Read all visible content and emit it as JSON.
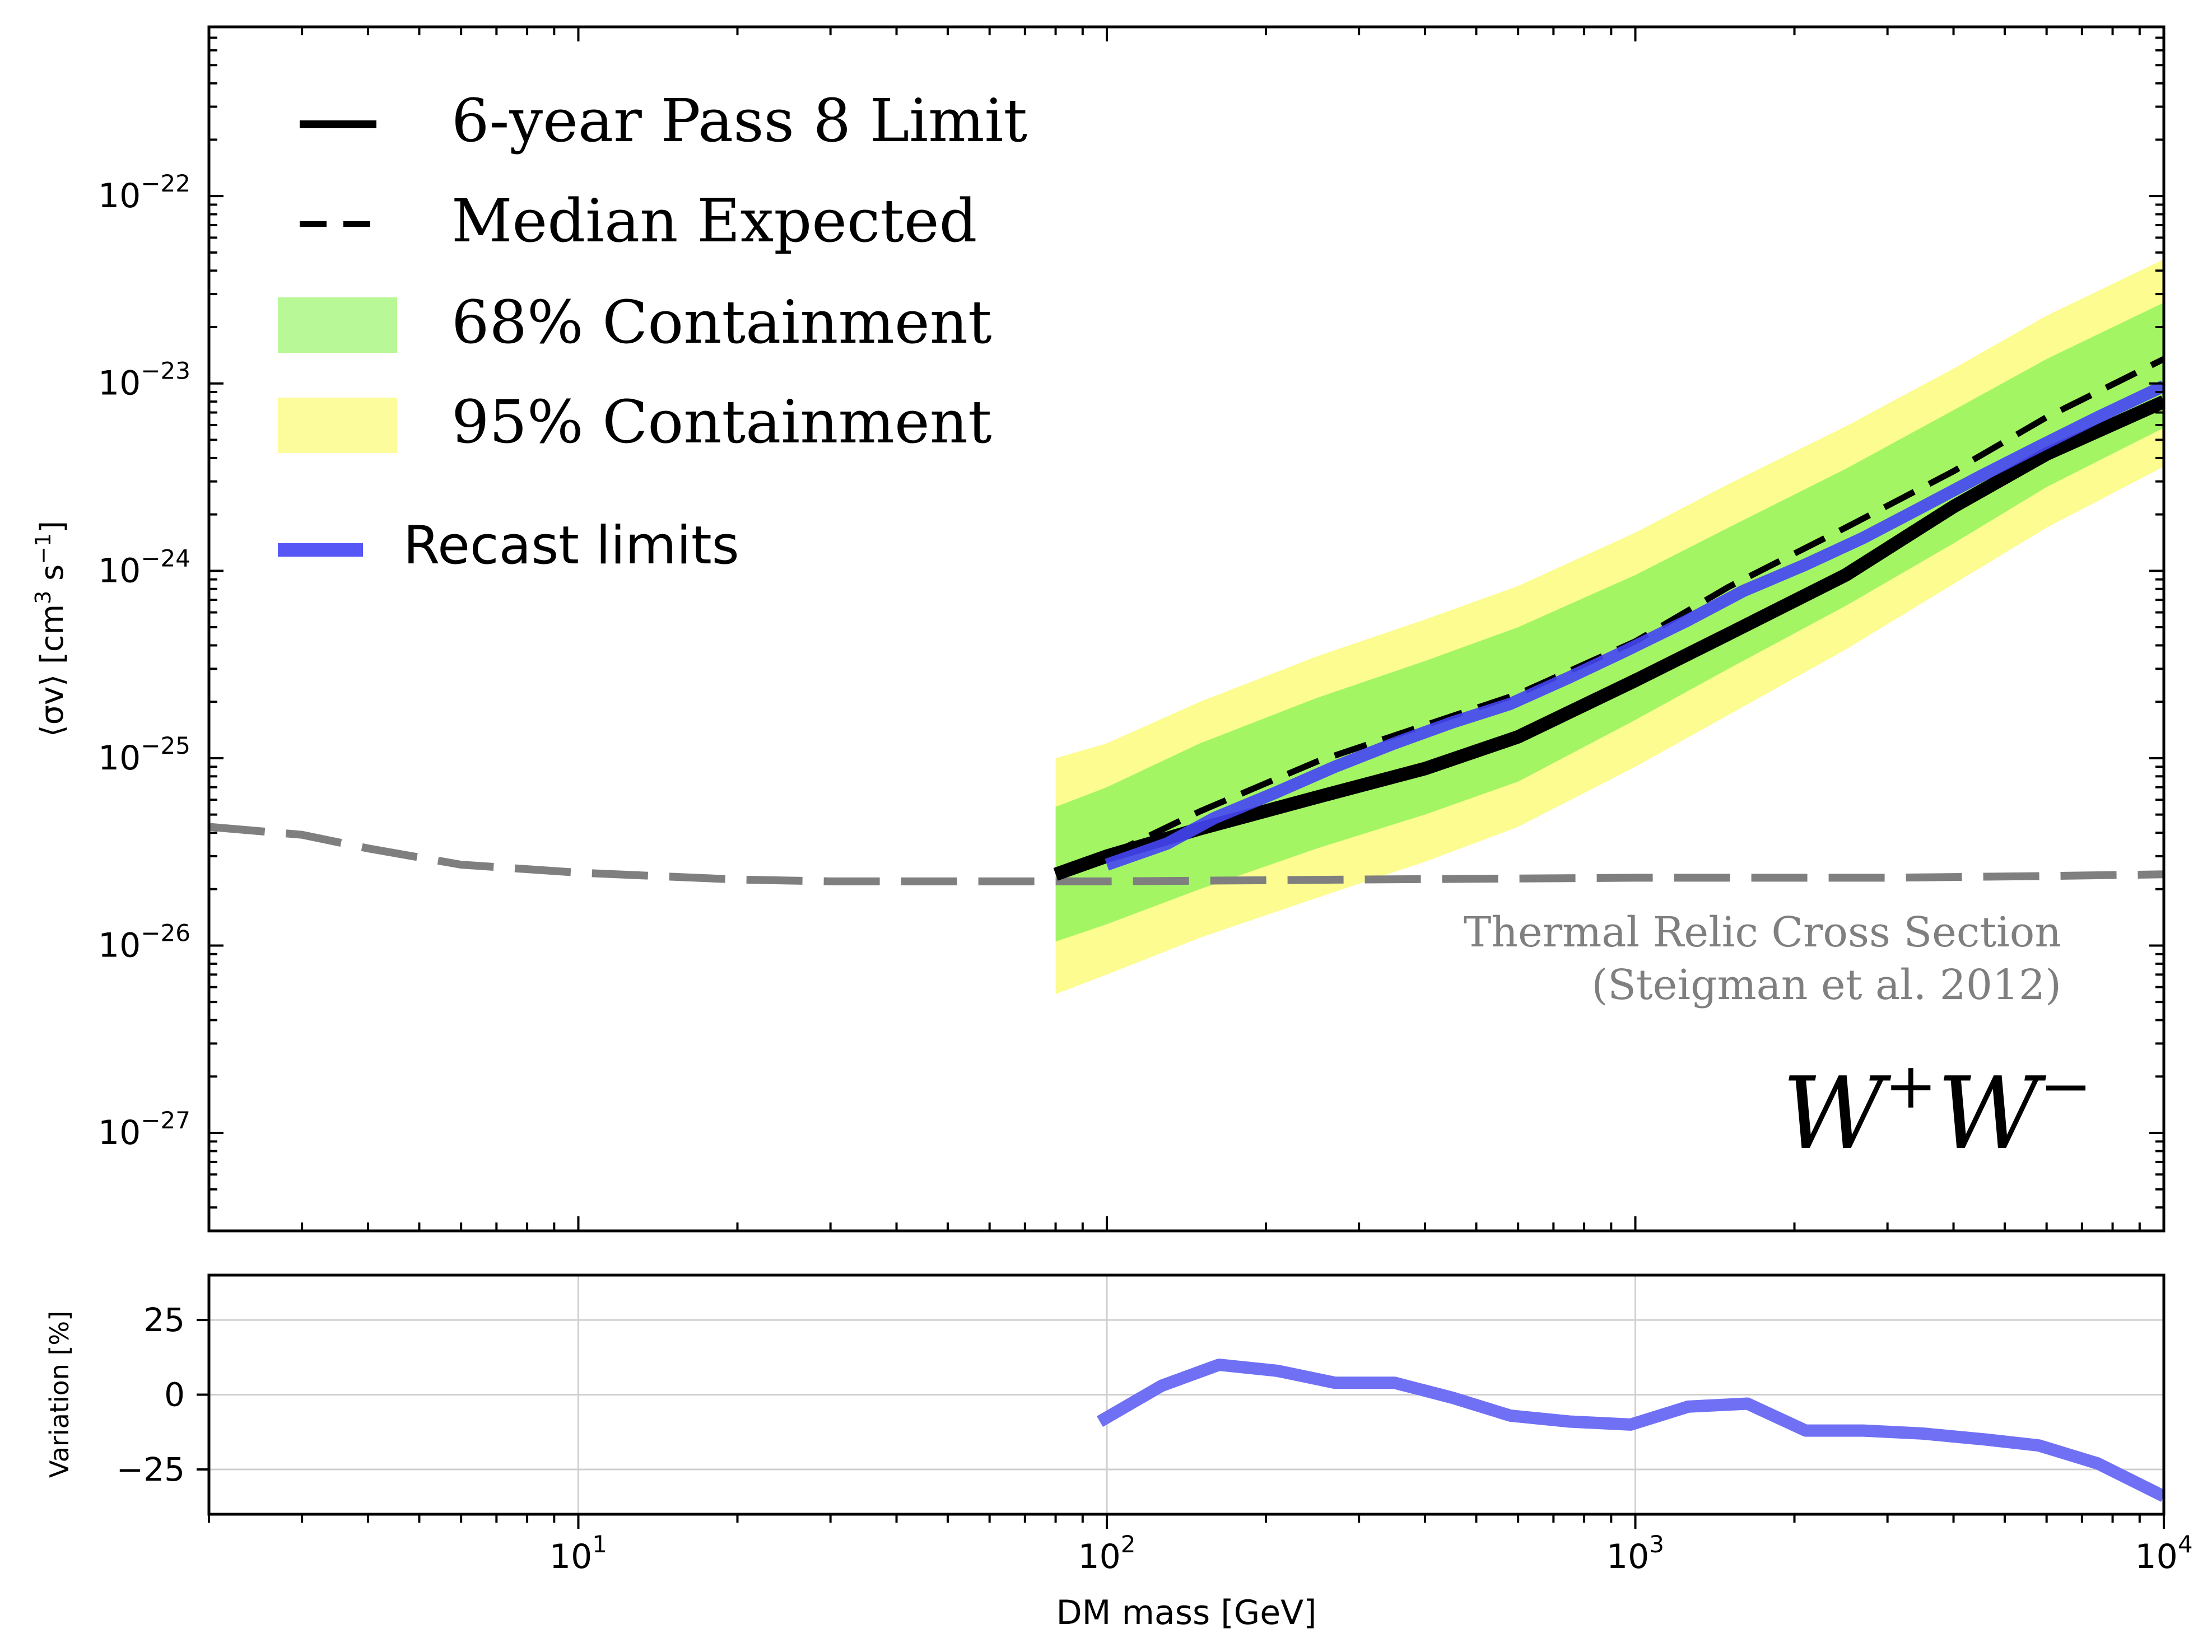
{
  "chart_data": [
    {
      "type": "line",
      "panel": "main",
      "xscale": "log",
      "yscale": "log",
      "xlim": [
        2,
        10000
      ],
      "ylim": [
        3e-28,
        8e-22
      ],
      "ylabel_main": "⟨σv⟩ [cm",
      "ylabel_sup": "3",
      "ylabel_mid": " s",
      "ylabel_sup2": "−1",
      "ylabel_end": "]",
      "yticks": [
        {
          "value": 1e-27,
          "base": "10",
          "exp": "−27"
        },
        {
          "value": 1e-26,
          "base": "10",
          "exp": "−26"
        },
        {
          "value": 1e-25,
          "base": "10",
          "exp": "−25"
        },
        {
          "value": 1e-24,
          "base": "10",
          "exp": "−24"
        },
        {
          "value": 1e-23,
          "base": "10",
          "exp": "−23"
        },
        {
          "value": 1e-22,
          "base": "10",
          "exp": "−22"
        }
      ],
      "legend_position": "upper-left",
      "legend": [
        {
          "key": "limit",
          "label": "6-year Pass 8 Limit"
        },
        {
          "key": "median",
          "label": "Median Expected"
        },
        {
          "key": "band68",
          "label": "68% Containment"
        },
        {
          "key": "band95",
          "label": "95% Containment"
        },
        {
          "key": "recast",
          "label": "Recast limits"
        }
      ],
      "annotations": {
        "thermal_line1": "Thermal Relic Cross Section",
        "thermal_line2": "(Steigman et al. 2012)",
        "channel_W1": "W",
        "channel_sup1": "+",
        "channel_W2": "W",
        "channel_sup2": "−"
      },
      "colors": {
        "limit": "#000000",
        "median": "#000000",
        "band68": "#a3f564",
        "band95": "#fcfc90",
        "recast": "#4545f5",
        "thermal": "#7f7f7f"
      },
      "series": [
        {
          "key": "limit",
          "x": [
            80,
            100,
            150,
            250,
            400,
            600,
            1000,
            1500,
            2500,
            4000,
            6000,
            10000
          ],
          "y": [
            2.4e-26,
            3e-26,
            4.2e-26,
            6.2e-26,
            8.8e-26,
            1.3e-25,
            2.6e-25,
            4.6e-25,
            9.5e-25,
            2.2e-24,
            4.2e-24,
            8e-24
          ]
        },
        {
          "key": "median",
          "x": [
            80,
            100,
            150,
            250,
            400,
            600,
            1000,
            1500,
            2500,
            4000,
            6000,
            10000
          ],
          "y": [
            2.5e-26,
            3e-26,
            5.2e-26,
            9.6e-26,
            1.5e-25,
            2.2e-25,
            4.2e-25,
            8.2e-25,
            1.7e-24,
            3.4e-24,
            6.6e-24,
            1.35e-23
          ]
        },
        {
          "key": "recast",
          "x": [
            100,
            130,
            160,
            210,
            270,
            350,
            450,
            580,
            750,
            950,
            1250,
            1600,
            2100,
            2700,
            3500,
            4500,
            5800,
            7500,
            10000
          ],
          "y": [
            2.7e-26,
            3.5e-26,
            4.8e-26,
            6.6e-26,
            9e-26,
            1.2e-25,
            1.55e-25,
            1.95e-25,
            2.7e-25,
            3.7e-25,
            5.4e-25,
            7.8e-25,
            1.08e-24,
            1.5e-24,
            2.2e-24,
            3.2e-24,
            4.6e-24,
            6.6e-24,
            9.7e-24
          ]
        },
        {
          "key": "band68",
          "x": [
            80,
            100,
            150,
            250,
            400,
            600,
            1000,
            1500,
            2500,
            4000,
            6000,
            10000
          ],
          "lower": [
            1.05e-26,
            1.3e-26,
            2e-26,
            3.3e-26,
            5e-26,
            7.5e-26,
            1.6e-25,
            3e-25,
            6.5e-25,
            1.4e-24,
            2.8e-24,
            5.8e-24
          ],
          "upper": [
            5.5e-26,
            7e-26,
            1.2e-25,
            2.1e-25,
            3.3e-25,
            5e-25,
            9.5e-25,
            1.7e-24,
            3.5e-24,
            7.2e-24,
            1.35e-23,
            2.7e-23
          ]
        },
        {
          "key": "band95",
          "x": [
            80,
            100,
            150,
            250,
            400,
            600,
            1000,
            1500,
            2500,
            4000,
            6000,
            10000
          ],
          "lower": [
            5.5e-27,
            7e-27,
            1.1e-26,
            1.8e-26,
            2.8e-26,
            4.3e-26,
            9e-26,
            1.7e-25,
            3.8e-25,
            8.5e-25,
            1.7e-24,
            3.6e-24
          ],
          "upper": [
            1e-25,
            1.2e-25,
            2e-25,
            3.5e-25,
            5.5e-25,
            8.3e-25,
            1.6e-24,
            2.9e-24,
            5.9e-24,
            1.2e-23,
            2.3e-23,
            4.6e-23
          ]
        },
        {
          "key": "thermal",
          "x": [
            2,
            3,
            4,
            6,
            10,
            20,
            30,
            50,
            80,
            100,
            300,
            1000,
            3000,
            6000,
            10000
          ],
          "y": [
            4.3e-26,
            3.9e-26,
            3.3e-26,
            2.7e-26,
            2.45e-26,
            2.25e-26,
            2.2e-26,
            2.2e-26,
            2.2e-26,
            2.2e-26,
            2.25e-26,
            2.3e-26,
            2.3e-26,
            2.35e-26,
            2.4e-26
          ]
        }
      ]
    },
    {
      "type": "line",
      "panel": "ratio",
      "xscale": "log",
      "xlim": [
        2,
        10000
      ],
      "ylim": [
        -40,
        40
      ],
      "grid": true,
      "xlabel": "DM mass [GeV]",
      "ylabel": "Variation [%]",
      "xticks": [
        {
          "value": 10,
          "base": "10",
          "exp": "1"
        },
        {
          "value": 100,
          "base": "10",
          "exp": "2"
        },
        {
          "value": 1000,
          "base": "10",
          "exp": "3"
        },
        {
          "value": 10000,
          "base": "10",
          "exp": "4"
        }
      ],
      "yticks": [
        {
          "value": 25,
          "label": "25"
        },
        {
          "value": 0,
          "label": "0"
        },
        {
          "value": -25,
          "label": "−25"
        }
      ],
      "color": "#7070f5",
      "series": [
        {
          "key": "variation",
          "x": [
            97,
            127,
            163,
            210,
            270,
            350,
            450,
            580,
            750,
            980,
            1260,
            1630,
            2100,
            2700,
            3500,
            4600,
            5800,
            7500,
            10000
          ],
          "y": [
            -9,
            3,
            10,
            8,
            4,
            4,
            -1,
            -7,
            -9,
            -10,
            -4,
            -3,
            -12,
            -12,
            -13,
            -15,
            -17,
            -23,
            -34
          ]
        }
      ]
    }
  ]
}
